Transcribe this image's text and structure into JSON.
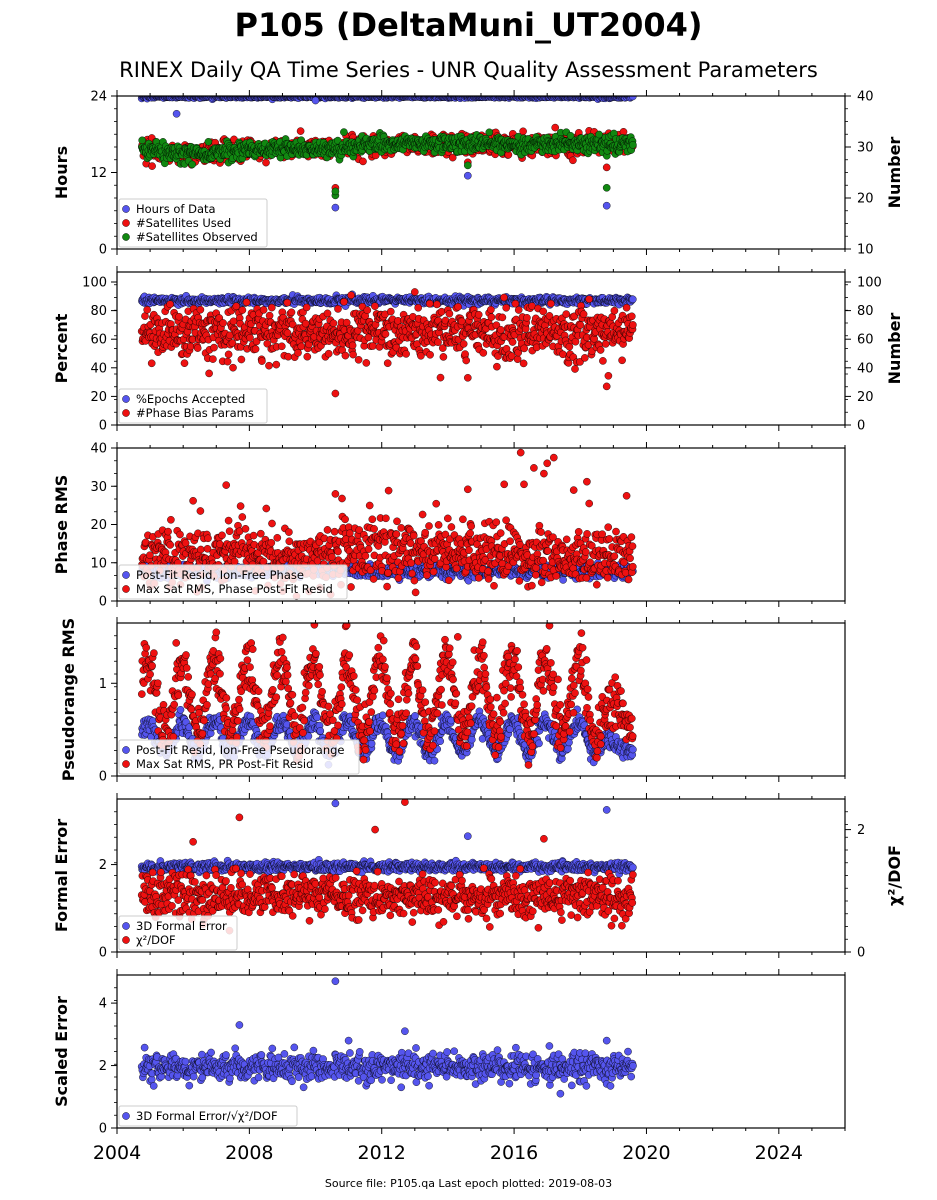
{
  "title": "P105 (DeltaMuni_UT2004)",
  "subtitle": "RINEX Daily QA Time Series - UNR Quality Assessment Parameters",
  "footer": "Source file: P105.qa Last epoch plotted: 2019-08-03",
  "colors": {
    "blue": "#5555ee",
    "red": "#ee1111",
    "green": "#118811"
  },
  "chart_data": {
    "type": "scatter",
    "x_axis": {
      "range": [
        2004,
        2026
      ],
      "ticks": [
        "2004",
        "2008",
        "2012",
        "2016",
        "2020",
        "2024"
      ]
    },
    "data_span": [
      2004.75,
      2019.59
    ],
    "panels": [
      {
        "id": "hours",
        "ylabel": "Hours",
        "ylim": [
          0,
          24
        ],
        "yticks": [
          "0",
          "12",
          "24"
        ],
        "ylabel_right": "Number",
        "ylim_right": [
          10,
          40
        ],
        "yticks_right": [
          "10",
          "20",
          "30",
          "40"
        ],
        "legend": [
          "Hours of Data",
          "#Satellites Used",
          "#Satellites Observed"
        ],
        "series": [
          {
            "name": "Hours of Data",
            "color": "blue",
            "axis": "left",
            "mean": 23.9,
            "noise": 0.1,
            "outliers": [
              [
                2005.8,
                21.2
              ],
              [
                2010.0,
                23.3
              ],
              [
                2010.6,
                6.5
              ],
              [
                2014.6,
                11.5
              ],
              [
                2018.8,
                6.8
              ]
            ]
          },
          {
            "name": "#Satellites Used",
            "color": "red",
            "axis": "right",
            "mean": 29.2,
            "noise": 1.0,
            "trend": [
              [
                2004.75,
                29.5
              ],
              [
                2006.0,
                28.5
              ],
              [
                2008.0,
                29.5
              ],
              [
                2010.5,
                29.8
              ],
              [
                2012.0,
                30.6
              ],
              [
                2019.6,
                30.6
              ]
            ],
            "outliers": [
              [
                2010.6,
                22.0
              ],
              [
                2014.6,
                27.0
              ],
              [
                2018.8,
                26.0
              ]
            ]
          },
          {
            "name": "#Satellites Observed",
            "color": "green",
            "axis": "right",
            "mean": 29.5,
            "noise": 0.8,
            "trend": [
              [
                2004.75,
                29.5
              ],
              [
                2006.0,
                28.5
              ],
              [
                2008.0,
                29.6
              ],
              [
                2010.5,
                29.7
              ],
              [
                2012.0,
                30.6
              ],
              [
                2019.6,
                30.6
              ]
            ],
            "outliers": [
              [
                2010.6,
                20.5
              ],
              [
                2010.6,
                21.3
              ],
              [
                2014.6,
                26.4
              ],
              [
                2018.8,
                22.0
              ]
            ]
          }
        ]
      },
      {
        "id": "percent",
        "ylabel": "Percent",
        "ylim": [
          0,
          107
        ],
        "yticks": [
          "0",
          "20",
          "40",
          "60",
          "80",
          "100"
        ],
        "ylabel_right": "Number",
        "ylim_right": [
          0,
          107
        ],
        "yticks_right": [
          "0",
          "20",
          "40",
          "60",
          "80",
          "100"
        ],
        "legend": [
          "%Epochs Accepted",
          "#Phase Bias Params"
        ],
        "series": [
          {
            "name": "%Epochs Accepted",
            "color": "blue",
            "axis": "left",
            "mean": 87,
            "noise": 1.2,
            "outliers": []
          },
          {
            "name": "#Phase Bias Params",
            "color": "red",
            "axis": "right",
            "mean": 64,
            "noise": 9,
            "outliers": [
              [
                2010.6,
                22
              ],
              [
                2014.6,
                33
              ],
              [
                2018.8,
                27
              ],
              [
                2013.0,
                93
              ],
              [
                2019.4,
                82
              ]
            ]
          }
        ]
      },
      {
        "id": "phase",
        "ylabel": "Phase RMS",
        "ylim": [
          0,
          40
        ],
        "yticks": [
          "0",
          "10",
          "20",
          "30",
          "40"
        ],
        "legend": [
          "Post-Fit Resid, Ion-Free Phase",
          "Max Sat RMS, Phase Post-Fit Resid"
        ],
        "series": [
          {
            "name": "Post-Fit Resid, Ion-Free Phase",
            "color": "blue",
            "axis": "left",
            "mean": 7.8,
            "noise": 0.8,
            "outliers": []
          },
          {
            "name": "Max Sat RMS, Phase Post-Fit Resid",
            "color": "red",
            "axis": "left",
            "mean": 11.5,
            "noise": 3.5,
            "outliers": [
              [
                2006.3,
                26.2
              ],
              [
                2007.3,
                30.3
              ],
              [
                2010.6,
                28.0
              ],
              [
                2010.8,
                26.8
              ],
              [
                2014.6,
                29.2
              ],
              [
                2015.7,
                30.5
              ],
              [
                2016.2,
                38.8
              ],
              [
                2016.6,
                34.8
              ],
              [
                2016.9,
                33.3
              ],
              [
                2017.0,
                36.0
              ],
              [
                2017.2,
                37.5
              ],
              [
                2017.8,
                29.0
              ],
              [
                2018.2,
                31.2
              ],
              [
                2019.4,
                27.5
              ],
              [
                2016.3,
                30.5
              ]
            ]
          }
        ]
      },
      {
        "id": "pseudorange",
        "ylabel": "Pseudorange RMS",
        "ylim": [
          0,
          1.65
        ],
        "yticks": [
          "0",
          "1"
        ],
        "legend": [
          "Post-Fit Resid, Ion-Free Pseudorange",
          "Max Sat RMS, PR Post-Fit Resid"
        ],
        "series": [
          {
            "name": "Post-Fit Resid, Ion-Free Pseudorange",
            "color": "blue",
            "axis": "left",
            "seasonal": {
              "base": 0.42,
              "amp": 0.17,
              "phase": 0.3
            },
            "noise": 0.05,
            "outliers": []
          },
          {
            "name": "Max Sat RMS, PR Post-Fit Resid",
            "color": "red",
            "axis": "left",
            "seasonal": {
              "base": 0.85,
              "amp": 0.4,
              "phase": 0.3
            },
            "noise": 0.15,
            "outliers": [
              [
                2007.0,
                1.55
              ],
              [
                2014.3,
                1.5
              ]
            ]
          }
        ]
      },
      {
        "id": "formal",
        "ylabel": "Formal Error",
        "ylim": [
          0,
          3.5
        ],
        "yticks": [
          "0",
          "2"
        ],
        "ylabel_right": "χ²/DOF",
        "ylim_right": [
          0,
          2.5
        ],
        "yticks_right": [
          "0",
          "2"
        ],
        "legend": [
          "3D Formal Error",
          "χ²/DOF"
        ],
        "series": [
          {
            "name": "3D Formal Error",
            "color": "blue",
            "axis": "left",
            "mean": 1.95,
            "noise": 0.05,
            "outliers": [
              [
                2010.6,
                3.4
              ],
              [
                2014.6,
                2.65
              ],
              [
                2018.8,
                3.25
              ]
            ]
          },
          {
            "name": "χ²/DOF",
            "color": "red",
            "axis": "right",
            "mean": 0.92,
            "noise": 0.17,
            "outliers": [
              [
                2006.3,
                1.8
              ],
              [
                2007.7,
                2.2
              ],
              [
                2011.8,
                2.0
              ],
              [
                2012.7,
                2.45
              ],
              [
                2016.9,
                1.85
              ],
              [
                2006.6,
                0.45
              ],
              [
                2007.4,
                0.35
              ]
            ]
          }
        ]
      },
      {
        "id": "scaled",
        "ylabel": "Scaled Error",
        "ylim": [
          0,
          4.9
        ],
        "yticks": [
          "0",
          "2",
          "4"
        ],
        "legend": [
          "3D Formal Error/√χ²/DOF"
        ],
        "series": [
          {
            "name": "3D Formal Error/√χ²/DOF",
            "color": "blue",
            "axis": "left",
            "mean": 1.95,
            "noise": 0.22,
            "outliers": [
              [
                2010.6,
                4.7
              ],
              [
                2007.7,
                3.3
              ],
              [
                2012.7,
                3.1
              ],
              [
                2011.0,
                2.8
              ],
              [
                2018.8,
                2.8
              ],
              [
                2017.4,
                1.1
              ]
            ]
          }
        ]
      }
    ]
  }
}
